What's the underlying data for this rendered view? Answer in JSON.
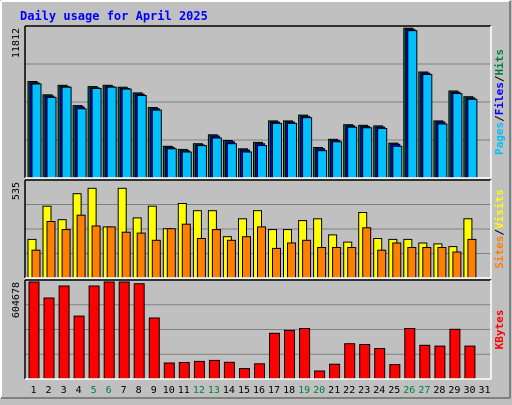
{
  "chart_data": {
    "type": "bar",
    "title": "Daily usage for April 2025",
    "categories": [
      "1",
      "2",
      "3",
      "4",
      "5",
      "6",
      "7",
      "8",
      "9",
      "10",
      "11",
      "12",
      "13",
      "14",
      "15",
      "16",
      "17",
      "18",
      "19",
      "20",
      "21",
      "22",
      "23",
      "24",
      "25",
      "26",
      "27",
      "28",
      "29",
      "30",
      "31"
    ],
    "weekend_days": [
      "5",
      "6",
      "12",
      "13",
      "19",
      "20",
      "26",
      "27"
    ],
    "grid": true,
    "panels": [
      {
        "id": "hits-files-pages",
        "ymax_label": "11812",
        "ymax": 11812,
        "legend": [
          {
            "text": "Pages",
            "color": "#00c0ff"
          },
          {
            "text": "Files",
            "color": "#0000ff"
          },
          {
            "text": "Hits",
            "color": "#008040"
          }
        ],
        "series": [
          {
            "name": "Hits",
            "color": "#008040",
            "values": [
              7600,
              6550,
              7300,
              5700,
              7200,
              7300,
              7150,
              6700,
              5550,
              2500,
              2250,
              2700,
              3400,
              2950,
              2300,
              2800,
              4500,
              4500,
              4950,
              2400,
              3050,
              4200,
              4150,
              4100,
              2750,
              11800,
              8350,
              4500,
              6850,
              6400,
              0
            ]
          },
          {
            "name": "Files",
            "color": "#0000ff",
            "values": [
              7500,
              6450,
              7200,
              5600,
              7100,
              7200,
              7050,
              6600,
              5450,
              2400,
              2150,
              2600,
              3300,
              2850,
              2200,
              2700,
              4400,
              4400,
              4850,
              2300,
              2950,
              4100,
              4050,
              4000,
              2650,
              11700,
              8250,
              4400,
              6750,
              6300,
              0
            ]
          },
          {
            "name": "Pages",
            "color": "#00c0ff",
            "values": [
              7400,
              6350,
              7150,
              5450,
              7050,
              7150,
              7000,
              6500,
              5350,
              2300,
              2050,
              2550,
              3150,
              2700,
              2050,
              2550,
              4300,
              4300,
              4750,
              2150,
              2850,
              4000,
              3950,
              3900,
              2500,
              11600,
              8150,
              4250,
              6650,
              6200,
              0
            ]
          }
        ]
      },
      {
        "id": "visits-sites",
        "ymax_label": "535",
        "ymax": 535,
        "legend": [
          {
            "text": "Sites",
            "color": "#ff8000"
          },
          {
            "text": "Visits",
            "color": "#ffff00"
          }
        ],
        "series": [
          {
            "name": "Visits",
            "color": "#ffff00",
            "values": [
              215,
              400,
              325,
              470,
              500,
              285,
              500,
              335,
              400,
              275,
              415,
              375,
              375,
              230,
              330,
              375,
              270,
              270,
              320,
              330,
              240,
              200,
              365,
              220,
              215,
              215,
              195,
              190,
              175,
              330,
              0
            ]
          },
          {
            "name": "Sites",
            "color": "#ff8000",
            "values": [
              155,
              315,
              270,
              350,
              290,
              285,
              255,
              250,
              210,
              275,
              300,
              220,
              270,
              210,
              230,
              285,
              165,
              195,
              210,
              170,
              170,
              170,
              280,
              155,
              195,
              170,
              170,
              170,
              145,
              215,
              0
            ]
          }
        ]
      },
      {
        "id": "kbytes",
        "ymax_label": "604678",
        "ymax": 604678,
        "legend": [
          {
            "text": "KBytes",
            "color": "#ff0000"
          }
        ],
        "series": [
          {
            "name": "KBytes",
            "color": "#ff0000",
            "values": [
              604678,
              505000,
              580000,
              392000,
              580000,
              604678,
              604678,
              594000,
              380000,
              100000,
              103000,
              110000,
              116000,
              104000,
              65000,
              95000,
              285000,
              303000,
              315000,
              50000,
              92000,
              220000,
              215000,
              190000,
              90000,
              315000,
              210000,
              205000,
              310000,
              205000,
              0
            ]
          }
        ]
      }
    ]
  }
}
